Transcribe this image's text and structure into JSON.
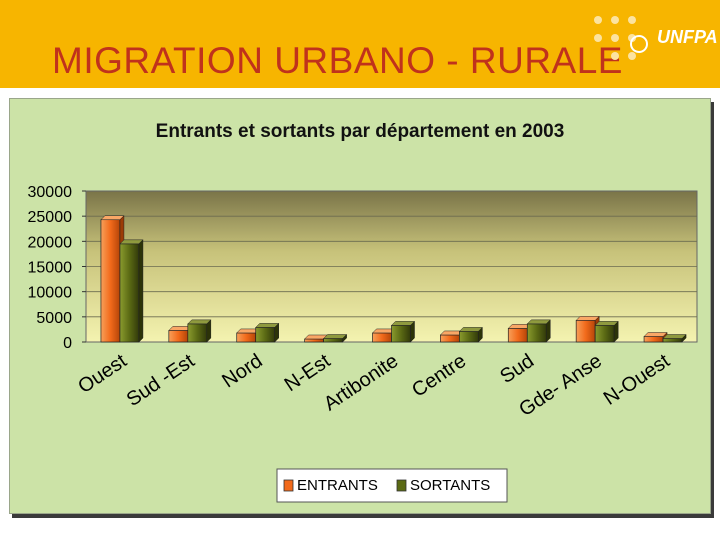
{
  "slide": {
    "title": "MIGRATION URBANO - RURALE",
    "logo": "UNFPA"
  },
  "colors": {
    "banner": "#f7b500",
    "title": "#c0321c",
    "chart_background": "#cce3a7",
    "entrants": "#f26a1b",
    "sortants": "#5b6a14"
  },
  "chart_data": {
    "type": "bar",
    "title": "Entrants et sortants par département en 2003",
    "categories": [
      "Ouest",
      "Sud -Est",
      "Nord",
      "N-Est",
      "Artibonite",
      "Centre",
      "Sud",
      "Gde- Anse",
      "N-Ouest"
    ],
    "series": [
      {
        "name": "ENTRANTS",
        "values": [
          24300,
          2300,
          1800,
          600,
          1800,
          1400,
          2700,
          4300,
          1100
        ]
      },
      {
        "name": "SORTANTS",
        "values": [
          19500,
          3600,
          2900,
          700,
          3300,
          2100,
          3600,
          3300,
          700
        ]
      }
    ],
    "ylim": [
      0,
      30000
    ],
    "yticks": [
      "0",
      "5000",
      "10000",
      "15000",
      "20000",
      "25000",
      "30000"
    ],
    "grid": true,
    "legend_position": "bottom"
  }
}
